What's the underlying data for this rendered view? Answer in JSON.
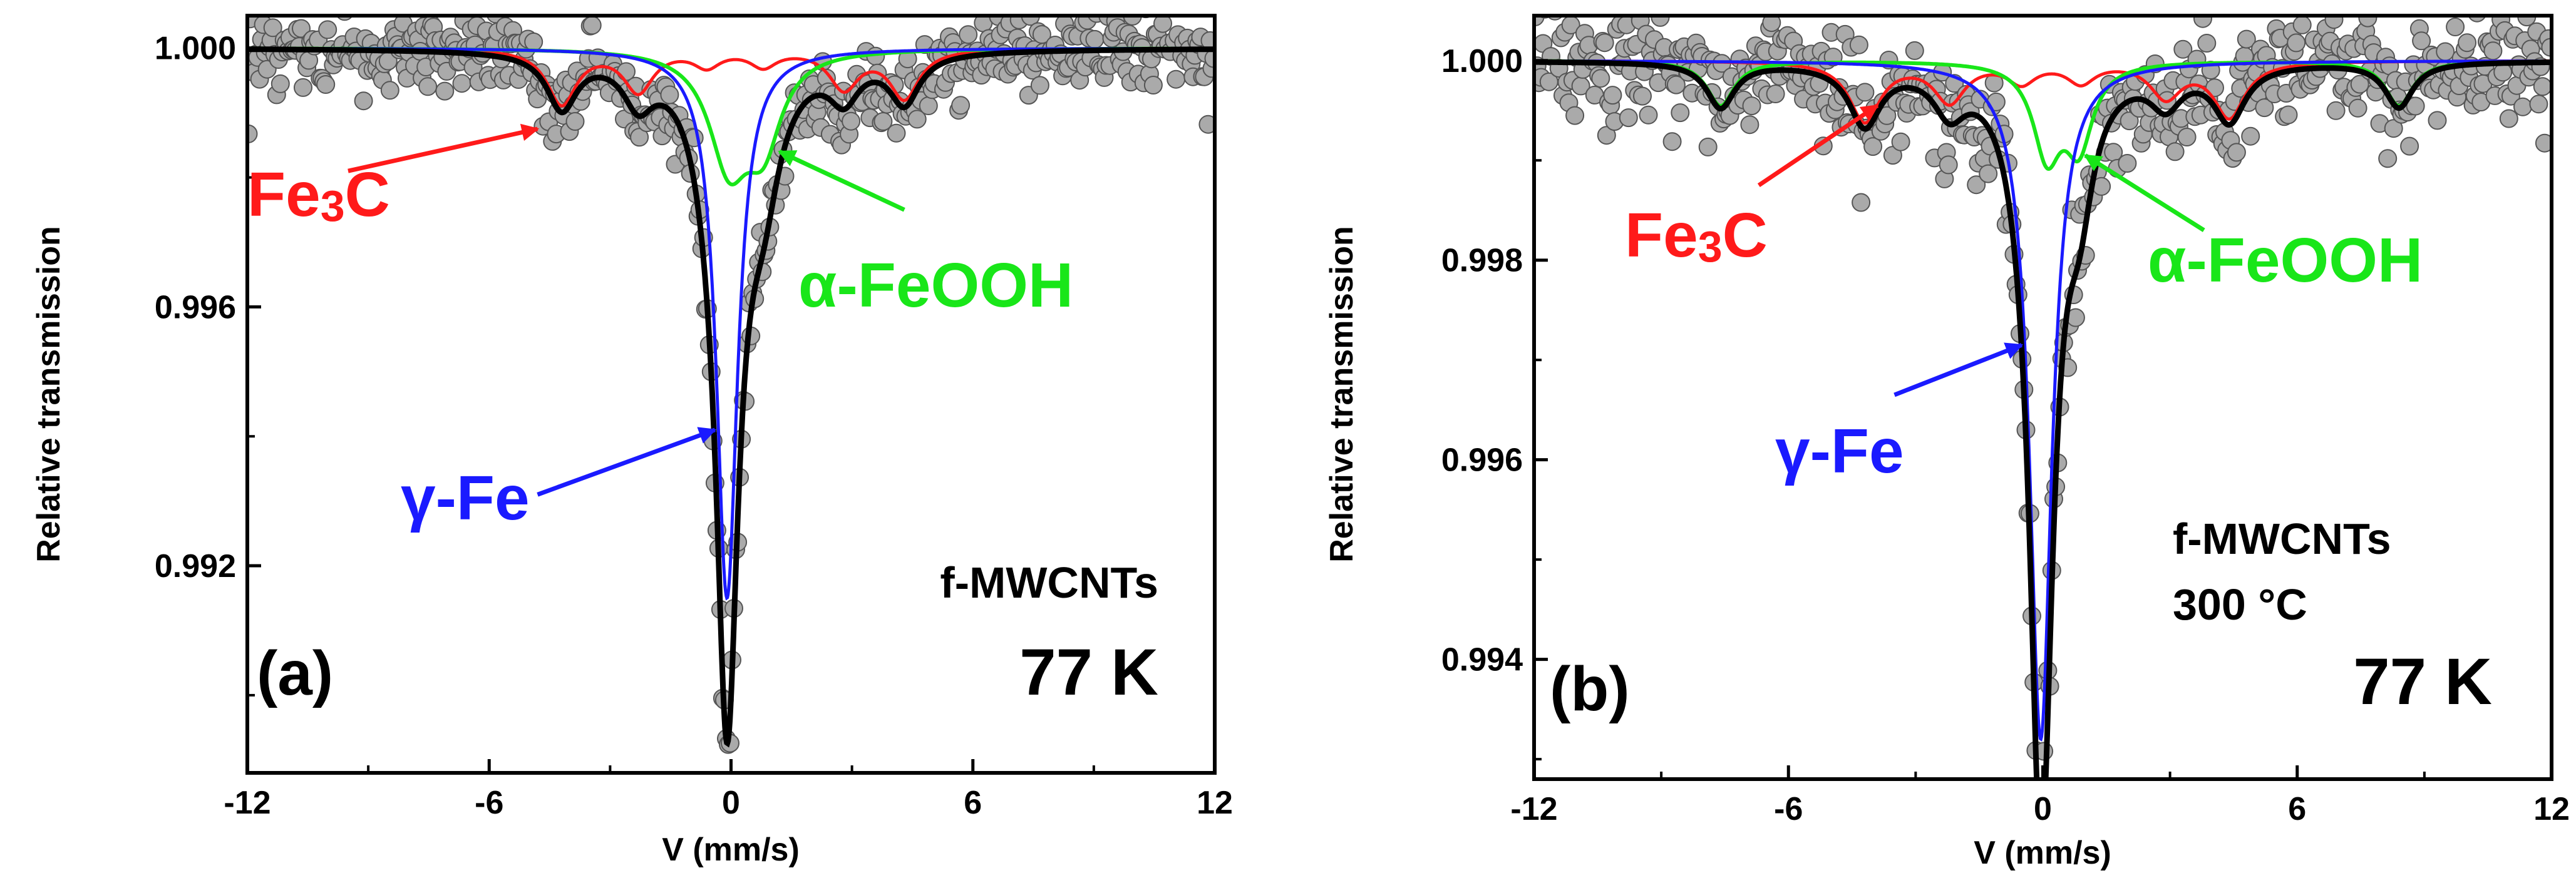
{
  "colors": {
    "data_points_fill": "#aaaaaa",
    "data_points_stroke": "#555555",
    "total_fit": "#000000",
    "fe3c": "#ff1a1a",
    "alpha_feooh": "#19e619",
    "gamma_fe": "#1a1aff"
  },
  "chart_data": [
    {
      "panel_label": "(a)",
      "type": "scatter+line",
      "title": "",
      "xlabel": "V (mm/s)",
      "ylabel": "Relative transmission",
      "xlim": [
        -12,
        12
      ],
      "ylim": [
        0.9888,
        1.0005
      ],
      "xticks": [
        -12,
        -6,
        0,
        6,
        12
      ],
      "xtick_labels": [
        "-12",
        "-6",
        "0",
        "6",
        "12"
      ],
      "yticks": [
        0.992,
        0.996,
        1.0
      ],
      "ytick_labels": [
        "0.992",
        "0.996",
        "1.000"
      ],
      "annotations": {
        "sample": [
          "f-MWCNTs"
        ],
        "temperature": "77 K",
        "fe3c": "Fe3C",
        "alpha_feooh": "α-FeOOH",
        "gamma_fe": "γ-Fe"
      },
      "components": {
        "gamma_fe": {
          "center": -0.1,
          "depth": 0.0085,
          "width": 0.32
        },
        "alpha_feooh": {
          "lines": [
            [
              -0.05,
              0.0017,
              0.6
            ],
            [
              0.8,
              0.0013,
              0.55
            ]
          ]
        },
        "fe3c": {
          "lines": [
            [
              -4.2,
              0.00085,
              0.45
            ],
            [
              -2.3,
              0.00065,
              0.45
            ],
            [
              -0.6,
              0.00025,
              0.4
            ],
            [
              0.8,
              0.00025,
              0.4
            ],
            [
              2.8,
              0.0006,
              0.45
            ],
            [
              4.3,
              0.00075,
              0.45
            ]
          ]
        }
      },
      "arrows": [
        {
          "component": "fe3c",
          "from": [
            -9.5,
            0.9981
          ],
          "to": [
            -4.8,
            0.99875
          ]
        },
        {
          "component": "alpha_feooh",
          "from": [
            4.3,
            0.9975
          ],
          "to": [
            1.2,
            0.9984
          ]
        },
        {
          "component": "gamma_fe",
          "from": [
            -4.8,
            0.9931
          ],
          "to": [
            -0.4,
            0.9941
          ]
        }
      ]
    },
    {
      "panel_label": "(b)",
      "type": "scatter+line",
      "title": "",
      "xlabel": "V (mm/s)",
      "ylabel": "Relative transmission",
      "xlim": [
        -12,
        12
      ],
      "ylim": [
        0.9928,
        1.00045
      ],
      "xticks": [
        -12,
        -6,
        0,
        6,
        12
      ],
      "xtick_labels": [
        "-12",
        "-6",
        "0",
        "6",
        "12"
      ],
      "yticks": [
        0.994,
        0.996,
        0.998,
        1.0
      ],
      "ytick_labels": [
        "0.994",
        "0.996",
        "0.998",
        "1.000"
      ],
      "annotations": {
        "sample": [
          "f-MWCNTs",
          "300 °C"
        ],
        "temperature": "77 K",
        "fe3c": "Fe3C",
        "alpha_feooh": "α-FeOOH",
        "gamma_fe": "γ-Fe"
      },
      "components": {
        "gamma_fe": {
          "center": -0.05,
          "depth": 0.0068,
          "width": 0.32
        },
        "alpha_feooh": {
          "lines": [
            [
              -7.6,
              0.00045,
              0.4
            ],
            [
              0.1,
              0.0009,
              0.4
            ],
            [
              0.85,
              0.0008,
              0.4
            ],
            [
              8.4,
              0.00045,
              0.4
            ]
          ]
        },
        "fe3c": {
          "lines": [
            [
              -4.2,
              0.0006,
              0.45
            ],
            [
              -2.2,
              0.0004,
              0.45
            ],
            [
              -0.5,
              0.0002,
              0.4
            ],
            [
              0.9,
              0.0002,
              0.4
            ],
            [
              2.9,
              0.00035,
              0.45
            ],
            [
              4.4,
              0.00055,
              0.45
            ]
          ]
        }
      },
      "arrows": [
        {
          "component": "fe3c",
          "from": [
            -6.7,
            0.99875
          ],
          "to": [
            -3.9,
            0.99955
          ]
        },
        {
          "component": "alpha_feooh",
          "from": [
            3.8,
            0.9983
          ],
          "to": [
            1.0,
            0.99905
          ]
        },
        {
          "component": "gamma_fe",
          "from": [
            -3.5,
            0.99665
          ],
          "to": [
            -0.5,
            0.99715
          ]
        }
      ]
    }
  ]
}
